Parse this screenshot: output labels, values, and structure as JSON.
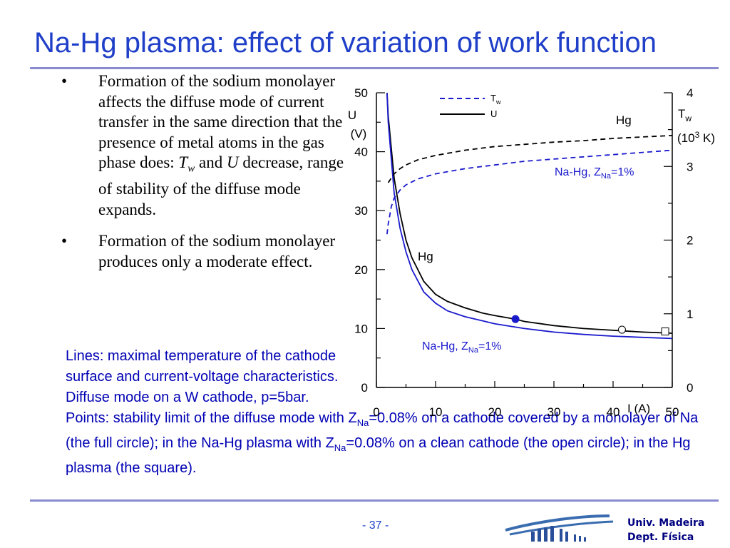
{
  "title": "Na-Hg plasma: effect of variation of work function",
  "bullets": {
    "b1": {
      "part1": "Formation of the sodium monolayer affects the diffuse mode of current transfer in the same direction that the presence of metal atoms in the gas phase does: ",
      "tw": "T",
      "tw_sub": "w",
      "and": " and ",
      "u": "U",
      "part2": " decrease, range of stability of the diffuse mode expands."
    },
    "b2": "Formation of the sodium monolayer produces only a moderate effect.",
    "marker": "•"
  },
  "notes": {
    "lines": "Lines: maximal temperature of the cathode surface and current-voltage characteristics. Diffuse mode on a W cathode, p=5bar.",
    "points": {
      "p1": "Points: stability limit of the diffuse mode with Z",
      "sub1": "Na",
      "p2": "=0.08% on a cathode covered by a monolayer of Na (the full circle); in the Na-Hg plasma with Z",
      "sub2": "Na",
      "p3": "=0.08% on a clean cathode (the open circle); in the Hg plasma (the square)."
    }
  },
  "footer": {
    "page": "- 37 -",
    "univ_line1": "Univ. Madeira",
    "univ_line2": "Dept. Física"
  },
  "colors": {
    "title": "#1f3fc9",
    "blue_series": "#1a1acd",
    "black_series": "#000000",
    "notes_text": "#0000b4"
  },
  "chart_data": {
    "type": "line",
    "xlabel": "I (A)",
    "xlim": [
      0,
      50
    ],
    "x_ticks": [
      "0",
      "10",
      "20",
      "30",
      "40",
      "50"
    ],
    "ylabel_left": {
      "main": "U",
      "unit": "(V)"
    },
    "ylim_left": [
      0,
      50
    ],
    "y_ticks_left": [
      "0",
      "10",
      "20",
      "30",
      "40",
      "50"
    ],
    "ylabel_right": {
      "main": "T",
      "sub": "w",
      "unit_pre": "(10",
      "unit_sup": "3",
      "unit_post": " K)"
    },
    "ylim_right": [
      0,
      4
    ],
    "y_ticks_right": [
      "0",
      "1",
      "2",
      "3",
      "4"
    ],
    "legend": {
      "position": "top",
      "entries": [
        {
          "style": "dashed",
          "label": "T",
          "sub": "w"
        },
        {
          "style": "solid",
          "label": "U"
        }
      ]
    },
    "series": [
      {
        "name": "Hg",
        "quantity": "U",
        "axis": "left",
        "color": "#000000",
        "style": "solid",
        "x": [
          1.8,
          2,
          3,
          4,
          5,
          6,
          8,
          10,
          12,
          15,
          18,
          20,
          23.5,
          25,
          30,
          35,
          40,
          45,
          50
        ],
        "y": [
          50,
          46,
          35.5,
          29.5,
          25,
          22,
          18,
          15.8,
          14.6,
          13.5,
          12.6,
          12.2,
          11.6,
          11.2,
          10.5,
          10,
          9.7,
          9.4,
          9.2
        ]
      },
      {
        "name": "Na-Hg, Z_Na=1%",
        "quantity": "U",
        "axis": "left",
        "color": "#1a1acd",
        "style": "solid",
        "x": [
          1.8,
          2,
          3,
          4,
          5,
          6,
          8,
          10,
          12,
          15,
          18,
          20,
          25,
          30,
          35,
          40,
          45,
          50
        ],
        "y": [
          50,
          45,
          33,
          27,
          23,
          20,
          16.2,
          14.3,
          13,
          12,
          11.3,
          10.8,
          10,
          9.4,
          9,
          8.7,
          8.5,
          8.3
        ]
      },
      {
        "name": "Hg",
        "quantity": "Tw",
        "axis": "right",
        "color": "#000000",
        "style": "dashed",
        "x": [
          2,
          3,
          4,
          5,
          7,
          10,
          15,
          20,
          25,
          30,
          35,
          40,
          45,
          50
        ],
        "y": [
          2.78,
          2.9,
          2.97,
          3.02,
          3.09,
          3.15,
          3.22,
          3.27,
          3.3,
          3.33,
          3.35,
          3.38,
          3.4,
          3.42
        ]
      },
      {
        "name": "Na-Hg, Z_Na=1%",
        "quantity": "Tw",
        "axis": "right",
        "color": "#1a1acd",
        "style": "dashed",
        "x": [
          1.8,
          2,
          2.5,
          3,
          4,
          5,
          7,
          10,
          15,
          20,
          25,
          30,
          35,
          40,
          45,
          50
        ],
        "y": [
          2.08,
          2.22,
          2.45,
          2.57,
          2.68,
          2.75,
          2.83,
          2.9,
          2.97,
          3.02,
          3.07,
          3.1,
          3.13,
          3.16,
          3.19,
          3.22
        ]
      }
    ],
    "points": [
      {
        "label": "full circle",
        "x": 23.5,
        "y": 11.6,
        "axis": "left",
        "marker": "filled-circle",
        "color": "#1a1acd"
      },
      {
        "label": "open circle",
        "x": 41.5,
        "y": 9.8,
        "axis": "left",
        "marker": "open-circle",
        "color": "#000000"
      },
      {
        "label": "square",
        "x": 48.8,
        "y": 9.5,
        "axis": "left",
        "marker": "open-square",
        "color": "#000000"
      }
    ],
    "annotations": [
      {
        "text": "Hg",
        "near": "Tw Hg curve"
      },
      {
        "main": "Na-Hg, Z",
        "sub": "Na",
        "post": "=1%",
        "near": "Tw Na-Hg curve"
      },
      {
        "text": "Hg",
        "near": "U Hg curve"
      },
      {
        "main": "Na-Hg, Z",
        "sub": "Na",
        "post": "=1%",
        "near": "U Na-Hg curve"
      }
    ]
  }
}
